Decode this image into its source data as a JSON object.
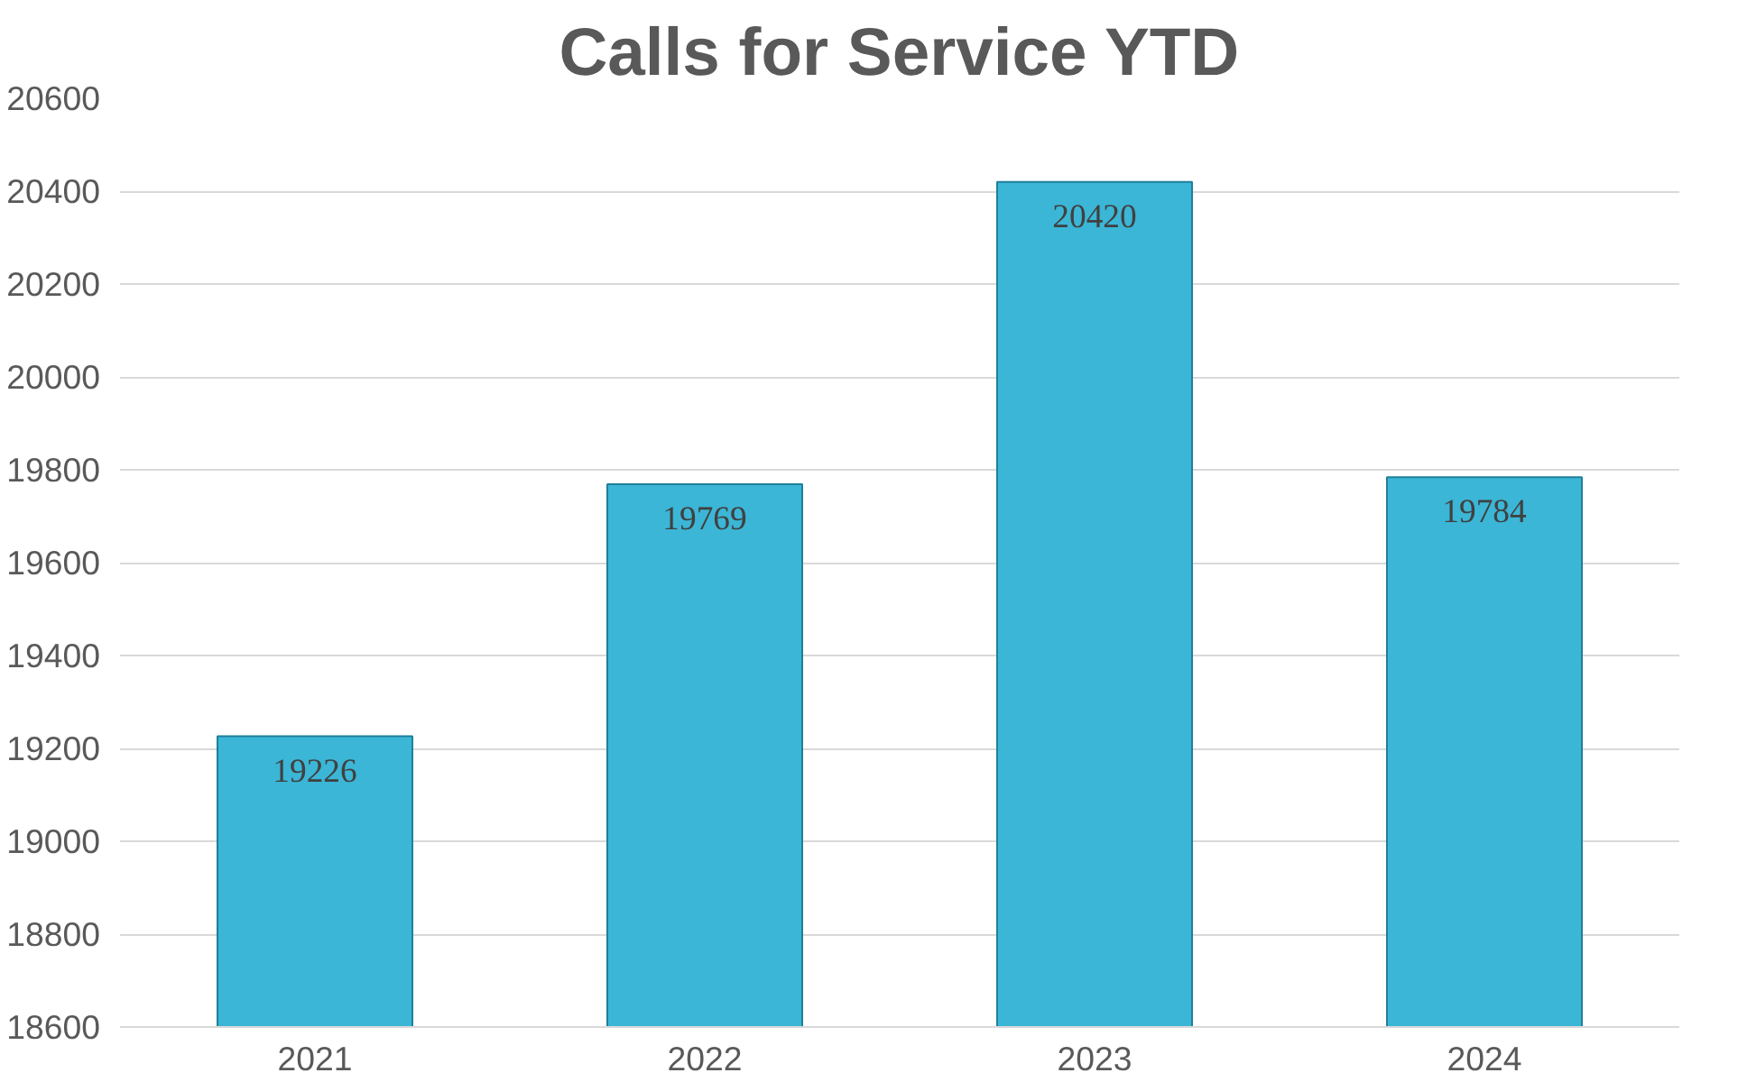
{
  "chart_data": {
    "type": "bar",
    "title": "Calls for Service YTD",
    "categories": [
      "2021",
      "2022",
      "2023",
      "2024"
    ],
    "values": [
      19226,
      19769,
      20420,
      19784
    ],
    "color": "#3bb6d6",
    "ylim": [
      18600,
      20600
    ],
    "yticks": [
      18600,
      18800,
      19000,
      19200,
      19400,
      19600,
      19800,
      20000,
      20200,
      20400,
      20600
    ],
    "grid": "y",
    "data_labels": true
  }
}
